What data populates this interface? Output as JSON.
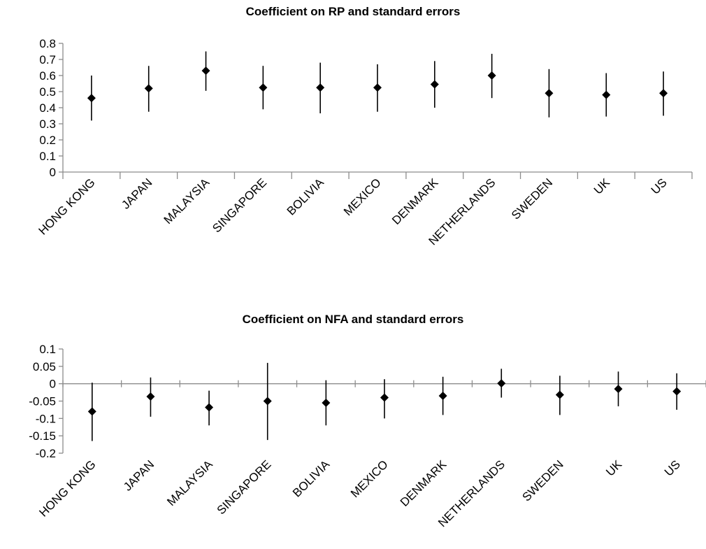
{
  "chart_data": [
    {
      "type": "scatter",
      "title": "Coefficient on RP and standard errors",
      "xlabel": "",
      "ylabel": "",
      "ylim": [
        0,
        0.8
      ],
      "y_ticks": [
        "0.8",
        "0.7",
        "0.6",
        "0.5",
        "0.4",
        "0.3",
        "0.2",
        "0.1",
        "0"
      ],
      "grid": false,
      "categories": [
        "HONG KONG",
        "JAPAN",
        "MALAYSIA",
        "SINGAPORE",
        "BOLIVIA",
        "MEXICO",
        "DENMARK",
        "NETHERLANDS",
        "SWEDEN",
        "UK",
        "US"
      ],
      "values": [
        0.46,
        0.52,
        0.63,
        0.525,
        0.525,
        0.525,
        0.545,
        0.6,
        0.49,
        0.48,
        0.49
      ],
      "error_low": [
        0.32,
        0.375,
        0.505,
        0.39,
        0.365,
        0.375,
        0.4,
        0.46,
        0.34,
        0.345,
        0.35
      ],
      "error_high": [
        0.6,
        0.66,
        0.75,
        0.66,
        0.68,
        0.67,
        0.69,
        0.735,
        0.64,
        0.615,
        0.625
      ]
    },
    {
      "type": "scatter",
      "title": "Coefficient on NFA and standard errors",
      "xlabel": "",
      "ylabel": "",
      "ylim": [
        -0.2,
        0.1
      ],
      "y_ticks": [
        "0.1",
        "0.05",
        "0",
        "-0.05",
        "-0.1",
        "-0.15",
        "-0.2"
      ],
      "grid": false,
      "categories": [
        "HONG KONG",
        "JAPAN",
        "MALAYSIA",
        "SINGAPORE",
        "BOLIVIA",
        "MEXICO",
        "DENMARK",
        "NETHERLANDS",
        "SWEDEN",
        "UK",
        "US"
      ],
      "values": [
        -0.08,
        -0.037,
        -0.068,
        -0.05,
        -0.055,
        -0.04,
        -0.035,
        0.001,
        -0.032,
        -0.015,
        -0.022
      ],
      "error_low": [
        -0.165,
        -0.095,
        -0.12,
        -0.162,
        -0.12,
        -0.1,
        -0.09,
        -0.04,
        -0.09,
        -0.065,
        -0.075
      ],
      "error_high": [
        0.003,
        0.018,
        -0.02,
        0.06,
        0.01,
        0.013,
        0.02,
        0.043,
        0.023,
        0.035,
        0.03
      ]
    }
  ],
  "colors": {
    "axis": "#8c8c8c",
    "marker": "#000000"
  }
}
